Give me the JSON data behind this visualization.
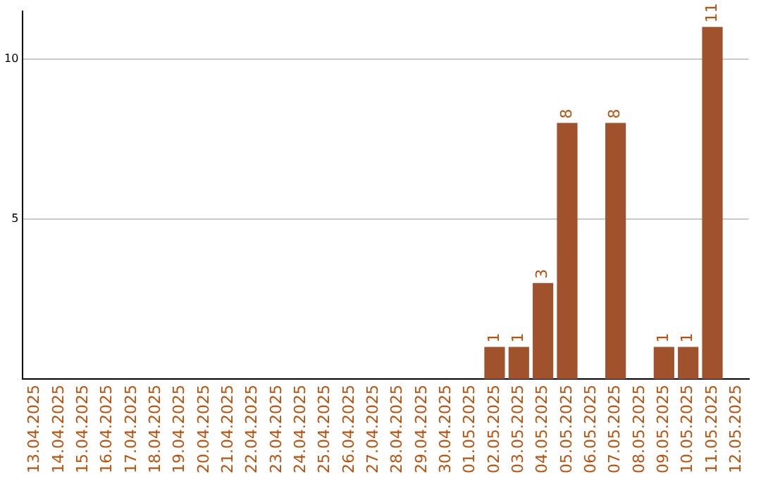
{
  "chart_data": {
    "type": "bar",
    "categories": [
      "13.04.2025",
      "14.04.2025",
      "15.04.2025",
      "16.04.2025",
      "17.04.2025",
      "18.04.2025",
      "19.04.2025",
      "20.04.2025",
      "21.04.2025",
      "22.04.2025",
      "23.04.2025",
      "24.04.2025",
      "25.04.2025",
      "26.04.2025",
      "27.04.2025",
      "28.04.2025",
      "29.04.2025",
      "30.04.2025",
      "01.05.2025",
      "02.05.2025",
      "03.05.2025",
      "04.05.2025",
      "05.05.2025",
      "06.05.2025",
      "07.05.2025",
      "08.05.2025",
      "09.05.2025",
      "10.05.2025",
      "11.05.2025",
      "12.05.2025"
    ],
    "values": [
      0,
      0,
      0,
      0,
      0,
      0,
      0,
      0,
      0,
      0,
      0,
      0,
      0,
      0,
      0,
      0,
      0,
      0,
      0,
      1,
      1,
      3,
      8,
      0,
      8,
      0,
      1,
      1,
      11,
      0
    ],
    "value_labels": [
      null,
      null,
      null,
      null,
      null,
      null,
      null,
      null,
      null,
      null,
      null,
      null,
      null,
      null,
      null,
      null,
      null,
      null,
      null,
      "1",
      "1",
      "3",
      "8",
      null,
      "8",
      null,
      "1",
      "1",
      "11",
      null
    ],
    "color": "#a0522d",
    "ylim": [
      0,
      11.5
    ],
    "yticks": [
      5,
      10
    ],
    "grid": "y"
  }
}
